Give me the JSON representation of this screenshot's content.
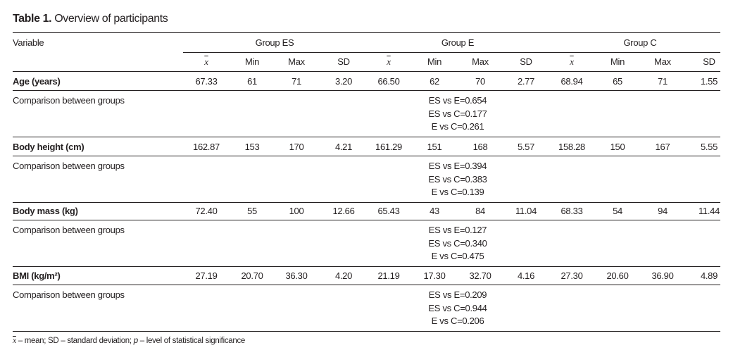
{
  "title": {
    "label": "Table 1.",
    "text": "Overview of participants"
  },
  "header": {
    "variable": "Variable",
    "groups": [
      "Group ES",
      "Group E",
      "Group C"
    ],
    "subcolumns": [
      "x",
      "Min",
      "Max",
      "SD",
      "x",
      "Min",
      "Max",
      "SD",
      "x",
      "Min",
      "Max",
      "SD"
    ]
  },
  "rows": [
    {
      "label": "Age (years)",
      "values": [
        "67.33",
        "61",
        "71",
        "3.20",
        "66.50",
        "62",
        "70",
        "2.77",
        "68.94",
        "65",
        "71",
        "1.55"
      ],
      "comparison_label": "Comparison between groups",
      "comparisons": [
        "ES vs E=0.654",
        "ES vs C=0.177",
        "E vs C=0.261"
      ]
    },
    {
      "label": "Body height (cm)",
      "values": [
        "162.87",
        "153",
        "170",
        "4.21",
        "161.29",
        "151",
        "168",
        "5.57",
        "158.28",
        "150",
        "167",
        "5.55"
      ],
      "comparison_label": "Comparison between groups",
      "comparisons": [
        "ES vs E=0.394",
        "ES vs C=0.383",
        "E vs C=0.139"
      ]
    },
    {
      "label": "Body mass (kg)",
      "values": [
        "72.40",
        "55",
        "100",
        "12.66",
        "65.43",
        "43",
        "84",
        "11.04",
        "68.33",
        "54",
        "94",
        "11.44"
      ],
      "comparison_label": "Comparison between groups",
      "comparisons": [
        "ES vs E=0.127",
        "ES vs C=0.340",
        "E vs C=0.475"
      ]
    },
    {
      "label": "BMI (kg/m²)",
      "values": [
        "27.19",
        "20.70",
        "36.30",
        "4.20",
        "21.19",
        "17.30",
        "32.70",
        "4.16",
        "27.30",
        "20.60",
        "36.90",
        "4.89"
      ],
      "comparison_label": "Comparison between groups",
      "comparisons": [
        "ES vs E=0.209",
        "ES vs C=0.944",
        "E vs C=0.206"
      ]
    }
  ],
  "footnote": {
    "xbar": "x",
    "text": " – mean; SD – standard deviation; ",
    "p": "p",
    "text2": " – level of statistical significance"
  }
}
